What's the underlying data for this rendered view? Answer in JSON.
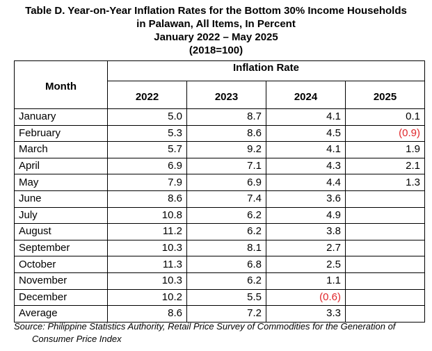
{
  "title": {
    "line1": "Table D. Year-on-Year Inflation Rates for the Bottom 30% Income Households",
    "line2": "in Palawan, All Items, In Percent",
    "line3": "January 2022 – May 2025",
    "line4": "(2018=100)"
  },
  "table": {
    "month_header": "Month",
    "group_header": "Inflation Rate",
    "years": [
      "2022",
      "2023",
      "2024",
      "2025"
    ],
    "rows": [
      {
        "month": "January",
        "values": [
          "5.0",
          "8.7",
          "4.1",
          "0.1"
        ]
      },
      {
        "month": "February",
        "values": [
          "5.3",
          "8.6",
          "4.5",
          "(0.9)"
        ]
      },
      {
        "month": "March",
        "values": [
          "5.7",
          "9.2",
          "4.1",
          "1.9"
        ]
      },
      {
        "month": "April",
        "values": [
          "6.9",
          "7.1",
          "4.3",
          "2.1"
        ]
      },
      {
        "month": "May",
        "values": [
          "7.9",
          "6.9",
          "4.4",
          "1.3"
        ]
      },
      {
        "month": "June",
        "values": [
          "8.6",
          "7.4",
          "3.6",
          ""
        ]
      },
      {
        "month": "July",
        "values": [
          "10.8",
          "6.2",
          "4.9",
          ""
        ]
      },
      {
        "month": "August",
        "values": [
          "11.2",
          "6.2",
          "3.8",
          ""
        ]
      },
      {
        "month": "September",
        "values": [
          "10.3",
          "8.1",
          "2.7",
          ""
        ]
      },
      {
        "month": "October",
        "values": [
          "11.3",
          "6.8",
          "2.5",
          ""
        ]
      },
      {
        "month": "November",
        "values": [
          "10.3",
          "6.2",
          "1.1",
          ""
        ]
      },
      {
        "month": "December",
        "values": [
          "10.2",
          "5.5",
          "(0.6)",
          ""
        ]
      },
      {
        "month": "Average",
        "values": [
          "8.6",
          "7.2",
          "3.3",
          ""
        ]
      }
    ]
  },
  "source": {
    "line1": "Source: Philippine Statistics Authority, Retail Price Survey of Commodities for the Generation of",
    "line2": "Consumer Price Index"
  },
  "colors": {
    "negative_value": "#e0262a"
  }
}
